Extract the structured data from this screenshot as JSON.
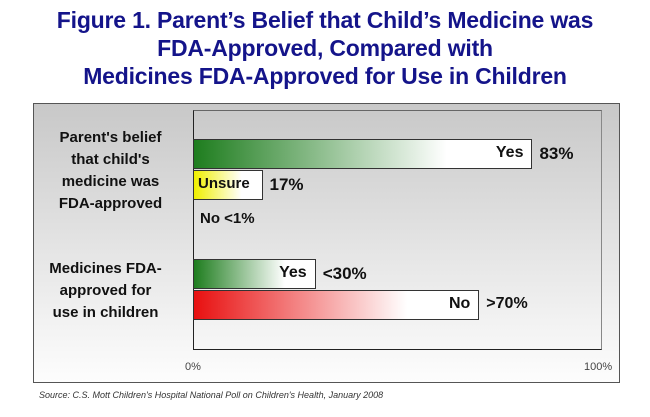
{
  "title": [
    "Figure 1. Parent’s Belief that Child’s Medicine was",
    "FDA-Approved, Compared with",
    "Medicines FDA-Approved for Use in Children"
  ],
  "chart_data": {
    "type": "bar",
    "orientation": "horizontal",
    "xlim": [
      0,
      100
    ],
    "x_ticks": [
      "0%",
      "100%"
    ],
    "categories": [
      {
        "label": [
          "Parent's belief",
          "that child's",
          "medicine was",
          "FDA-approved"
        ],
        "bars": [
          {
            "name": "Yes",
            "value": 83,
            "value_label": "83%",
            "color": "#1e7d1e"
          },
          {
            "name": "Unsure",
            "value": 17,
            "value_label": "17%",
            "color": "#f0f000"
          },
          {
            "name": "No",
            "value": 1,
            "value_label": "No <1%",
            "color": "#cccccc"
          }
        ]
      },
      {
        "label": [
          "Medicines FDA-",
          "approved for",
          "use in children"
        ],
        "bars": [
          {
            "name": "Yes",
            "value": 30,
            "value_label": "<30%",
            "color": "#1e7d1e"
          },
          {
            "name": "No",
            "value": 70,
            "value_label": ">70%",
            "color": "#e81010"
          }
        ]
      }
    ],
    "source": "Source: C.S. Mott Children's Hospital National Poll on Children's Health, January 2008"
  }
}
